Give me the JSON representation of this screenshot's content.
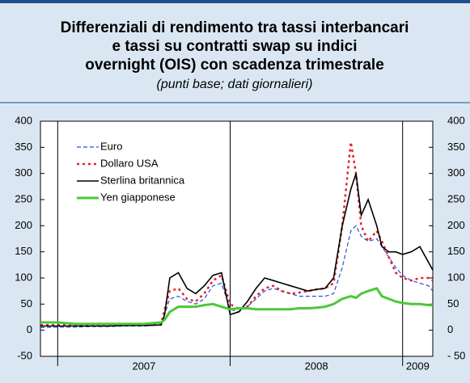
{
  "chart_data": {
    "type": "line",
    "title": [
      "Differenziali di rendimento tra tassi interbancari",
      "e tassi su contratti swap su indici",
      "overnight (OIS) con scadenza trimestrale"
    ],
    "subtitle": "(punti base; dati giornalieri)",
    "x": [
      2006.9,
      2007.0,
      2007.1,
      2007.2,
      2007.3,
      2007.4,
      2007.5,
      2007.6,
      2007.62,
      2007.65,
      2007.7,
      2007.75,
      2007.8,
      2007.85,
      2007.9,
      2007.95,
      2008.0,
      2008.05,
      2008.1,
      2008.15,
      2008.2,
      2008.25,
      2008.3,
      2008.35,
      2008.4,
      2008.45,
      2008.5,
      2008.55,
      2008.6,
      2008.65,
      2008.7,
      2008.73,
      2008.76,
      2008.8,
      2008.85,
      2008.88,
      2008.92,
      2008.96,
      2009.0,
      2009.05,
      2009.1,
      2009.15,
      2009.175
    ],
    "series": [
      {
        "name": "Euro",
        "color": "#2b4fd6",
        "dash": "dashed",
        "values": [
          5,
          6,
          6,
          7,
          7,
          8,
          8,
          10,
          30,
          60,
          65,
          55,
          50,
          60,
          85,
          90,
          40,
          35,
          45,
          60,
          75,
          80,
          75,
          70,
          65,
          65,
          65,
          65,
          70,
          120,
          190,
          200,
          180,
          170,
          175,
          160,
          140,
          120,
          105,
          95,
          90,
          85,
          75
        ]
      },
      {
        "name": "Dollaro USA",
        "color": "#e3232a",
        "dash": "dotted",
        "values": [
          10,
          10,
          10,
          10,
          10,
          10,
          10,
          12,
          40,
          75,
          80,
          60,
          55,
          70,
          95,
          105,
          50,
          40,
          45,
          65,
          80,
          85,
          75,
          70,
          72,
          75,
          78,
          80,
          90,
          200,
          360,
          300,
          200,
          170,
          190,
          170,
          140,
          110,
          100,
          95,
          100,
          100,
          95
        ]
      },
      {
        "name": "Sterlina britannica",
        "color": "#000000",
        "dash": "solid",
        "values": [
          8,
          8,
          8,
          8,
          8,
          9,
          9,
          10,
          30,
          100,
          110,
          80,
          70,
          85,
          105,
          110,
          30,
          35,
          55,
          80,
          100,
          95,
          90,
          85,
          80,
          75,
          78,
          80,
          100,
          200,
          270,
          300,
          220,
          250,
          200,
          160,
          150,
          150,
          145,
          150,
          160,
          130,
          115
        ]
      },
      {
        "name": "Yen giapponese",
        "color": "#4cc83a",
        "dash": "thick",
        "values": [
          15,
          15,
          12,
          12,
          12,
          12,
          12,
          15,
          20,
          35,
          45,
          45,
          45,
          48,
          50,
          45,
          40,
          42,
          42,
          40,
          40,
          40,
          40,
          40,
          42,
          42,
          43,
          45,
          50,
          60,
          65,
          62,
          70,
          75,
          80,
          65,
          60,
          55,
          52,
          50,
          50,
          48,
          48
        ]
      }
    ],
    "xlim": [
      2006.9,
      2009.175
    ],
    "xticks": [
      {
        "value": 2007,
        "label": "2007"
      },
      {
        "value": 2008,
        "label": "2008"
      },
      {
        "value": 2009,
        "label": "2009"
      }
    ],
    "ylim": [
      -50,
      400
    ],
    "yticks": [
      -50,
      0,
      50,
      100,
      150,
      200,
      250,
      300,
      350,
      400
    ],
    "y2lim": [
      -50,
      400
    ],
    "y2ticks": [
      {
        "value": -50,
        "label": "- 50"
      },
      0,
      50,
      100,
      150,
      200,
      250,
      300,
      350,
      400
    ],
    "legend": "upper left"
  }
}
